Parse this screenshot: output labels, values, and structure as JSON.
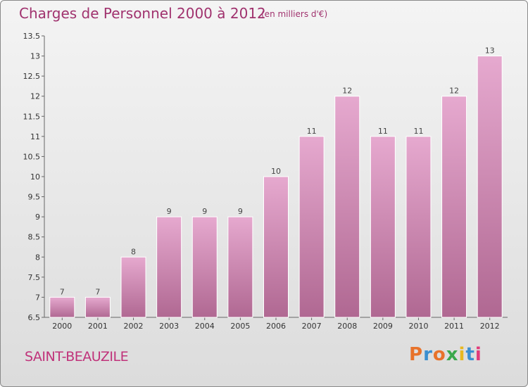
{
  "header": {
    "title": "Charges de Personnel 2000 à 2012",
    "subtitle": "(en milliers d'€)"
  },
  "footer": {
    "commune": "SAINT-BEAUZILE",
    "brand": "Proxiti"
  },
  "colors": {
    "title": "#a0326e",
    "bar_top": "#e6a9cf",
    "bar_bottom": "#b06892",
    "axis": "#666666",
    "brand_letters": [
      "#e8722a",
      "#3b8fd0",
      "#e8722a",
      "#3aa84b",
      "#e8b820",
      "#3b8fd0",
      "#e23b7a"
    ]
  },
  "chart_data": {
    "type": "bar",
    "categories": [
      "2000",
      "2001",
      "2002",
      "2003",
      "2004",
      "2005",
      "2006",
      "2007",
      "2008",
      "2009",
      "2010",
      "2011",
      "2012"
    ],
    "values": [
      7,
      7,
      8,
      9,
      9,
      9,
      10,
      11,
      12,
      11,
      11,
      12,
      13
    ],
    "data_labels": [
      "7",
      "7",
      "8",
      "9",
      "9",
      "9",
      "10",
      "11",
      "12",
      "11",
      "11",
      "12",
      "13"
    ],
    "title": "Charges de Personnel 2000 à 2012",
    "unit": "(en milliers d'€)",
    "xlabel": "",
    "ylabel": "",
    "ylim": [
      6.5,
      13.5
    ],
    "yticks": [
      6.5,
      7,
      7.5,
      8,
      8.5,
      9,
      9.5,
      10,
      10.5,
      11,
      11.5,
      12,
      12.5,
      13,
      13.5
    ],
    "ytick_labels": [
      "6.5",
      "7",
      "7.5",
      "8",
      "8.5",
      "9",
      "9.5",
      "10",
      "10.5",
      "11",
      "11.5",
      "12",
      "12.5",
      "13",
      "13.5"
    ],
    "grid": false,
    "legend": "none"
  }
}
